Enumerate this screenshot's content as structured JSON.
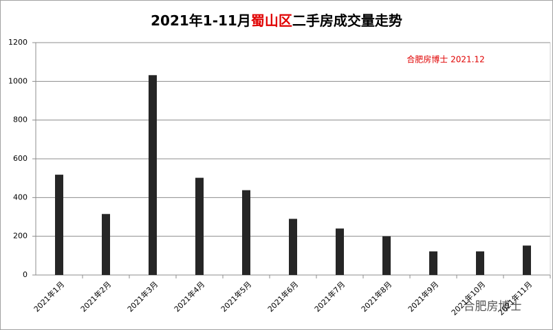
{
  "chart_data": {
    "type": "bar",
    "title": [
      {
        "text": "2021年1-11月",
        "color": "#000000"
      },
      {
        "text": "蜀山区",
        "color": "#e00000"
      },
      {
        "text": "二手房成交量走势",
        "color": "#000000"
      }
    ],
    "annotations": [
      {
        "text": "合肥房博士 2021.12",
        "color": "#e00000"
      },
      {
        "text": "合肥房博士",
        "color": "#555555"
      }
    ],
    "categories": [
      "2021年1月",
      "2021年2月",
      "2021年3月",
      "2021年4月",
      "2021年5月",
      "2021年6月",
      "2021年7月",
      "2021年8月",
      "2021年9月",
      "2021年10月",
      "2021年11月"
    ],
    "values": [
      518,
      315,
      1032,
      502,
      438,
      290,
      240,
      200,
      122,
      122,
      152
    ],
    "color": "#262626",
    "ylim": [
      0,
      1200
    ],
    "yticks": [
      0,
      200,
      400,
      600,
      800,
      1000,
      1200
    ],
    "grid": true
  }
}
